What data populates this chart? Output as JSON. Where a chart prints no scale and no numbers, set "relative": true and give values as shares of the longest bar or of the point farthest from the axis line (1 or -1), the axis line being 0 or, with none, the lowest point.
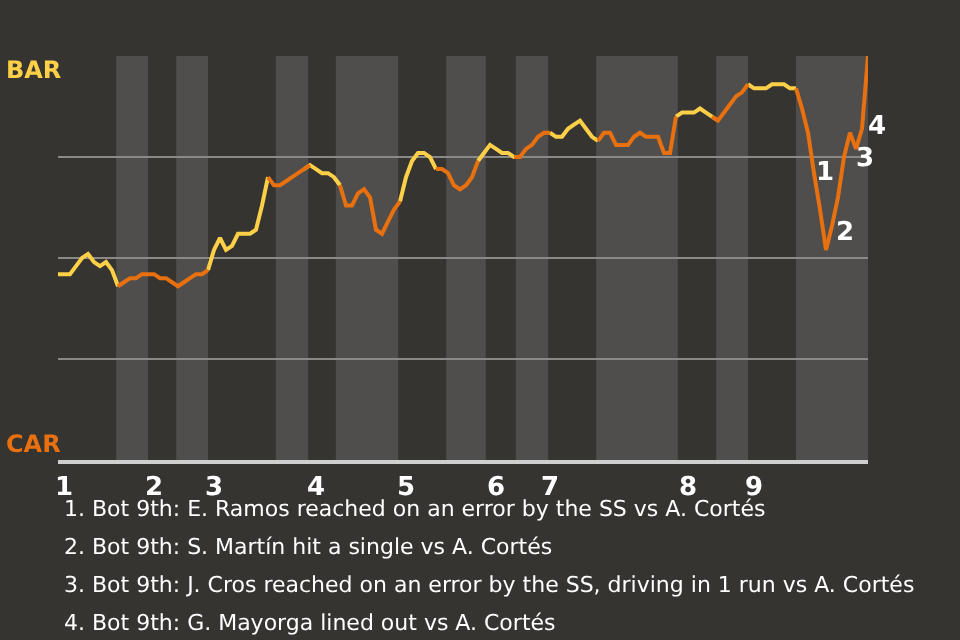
{
  "chart_data": {
    "type": "line",
    "relative": true,
    "categories": [
      null,
      "1",
      null,
      null,
      null,
      null,
      null,
      null,
      null,
      null,
      null,
      null,
      null,
      null,
      null,
      null,
      "2",
      null,
      null,
      null,
      null,
      null,
      null,
      null,
      null,
      null,
      "3",
      null,
      null,
      null,
      null,
      null,
      null,
      null,
      null,
      null,
      null,
      null,
      null,
      null,
      null,
      null,
      null,
      "4",
      null,
      null,
      null,
      null,
      null,
      null,
      null,
      null,
      null,
      null,
      null,
      null,
      null,
      null,
      "5",
      null,
      null,
      null,
      null,
      null,
      null,
      null,
      null,
      null,
      null,
      null,
      null,
      null,
      null,
      "6",
      null,
      null,
      null,
      null,
      null,
      null,
      null,
      null,
      "7",
      null,
      null,
      null,
      null,
      null,
      null,
      null,
      null,
      null,
      null,
      null,
      null,
      null,
      null,
      null,
      null,
      null,
      null,
      null,
      null,
      null,
      null,
      "8",
      null,
      null,
      null,
      null,
      null,
      null,
      null,
      null,
      null,
      null,
      "9",
      null,
      null,
      null,
      null,
      null,
      null,
      null,
      null,
      null,
      null,
      null,
      null,
      null,
      null,
      null,
      null,
      null,
      null,
      null
    ],
    "series": [
      {
        "color": "#fdd047",
        "values": [
          0.46,
          0.46,
          0.46,
          0.48,
          0.5,
          0.51,
          0.49,
          0.48,
          0.49,
          0.47,
          0.43,
          null,
          null,
          null,
          null,
          null,
          null,
          null,
          null,
          null,
          null,
          null,
          null,
          null,
          null,
          0.47,
          0.52,
          0.55,
          0.52,
          0.53,
          0.56,
          0.56,
          0.56,
          0.57,
          0.63,
          0.7,
          null,
          null,
          null,
          null,
          null,
          0.72,
          0.73,
          0.72,
          0.71,
          0.71,
          0.7,
          0.68,
          null,
          null,
          null,
          null,
          null,
          null,
          null,
          null,
          null,
          0.64,
          0.7,
          0.74,
          0.76,
          0.76,
          0.75,
          0.72,
          null,
          null,
          null,
          null,
          null,
          null,
          0.74,
          0.76,
          0.78,
          0.77,
          0.76,
          0.76,
          0.75,
          0.75,
          null,
          null,
          null,
          null,
          0.81,
          0.8,
          0.8,
          0.82,
          0.83,
          0.84,
          0.82,
          0.8,
          0.79,
          null,
          null,
          null,
          null,
          null,
          null,
          null,
          null,
          null,
          null,
          null,
          null,
          0.85,
          0.86,
          0.86,
          0.86,
          0.87,
          0.86,
          0.85,
          0.84,
          null,
          null,
          null,
          null,
          0.93,
          0.92,
          0.92,
          0.92,
          0.93,
          0.93,
          0.93,
          0.92,
          0.92,
          null,
          null,
          null,
          null,
          null,
          null,
          null,
          null,
          null,
          null,
          null,
          null
        ]
      },
      {
        "color": "#e8700e",
        "values": [
          null,
          null,
          null,
          null,
          null,
          null,
          null,
          null,
          null,
          null,
          0.43,
          0.44,
          0.45,
          0.45,
          0.46,
          0.46,
          0.46,
          0.45,
          0.45,
          0.44,
          0.43,
          0.44,
          0.45,
          0.46,
          0.46,
          0.47,
          null,
          null,
          null,
          null,
          null,
          null,
          null,
          null,
          null,
          0.7,
          0.68,
          0.68,
          0.69,
          0.7,
          0.71,
          0.72,
          0.73,
          null,
          null,
          null,
          null,
          0.68,
          0.63,
          0.63,
          0.66,
          0.67,
          0.65,
          0.57,
          0.56,
          0.59,
          0.62,
          0.64,
          null,
          null,
          null,
          null,
          null,
          0.72,
          0.72,
          0.71,
          0.68,
          0.67,
          0.68,
          0.7,
          0.74,
          null,
          null,
          null,
          null,
          null,
          0.75,
          0.75,
          0.77,
          0.78,
          0.8,
          0.81,
          0.81,
          null,
          null,
          null,
          null,
          null,
          null,
          null,
          0.79,
          0.81,
          0.81,
          0.78,
          0.78,
          0.78,
          0.8,
          0.81,
          0.8,
          0.8,
          0.8,
          0.76,
          0.76,
          0.85,
          null,
          null,
          null,
          null,
          null,
          0.85,
          0.84,
          0.86,
          0.88,
          0.9,
          0.91,
          0.93,
          null,
          null,
          null,
          null,
          null,
          null,
          null,
          0.92,
          0.87,
          0.81,
          0.71,
          0.62,
          0.52,
          0.58,
          0.65,
          0.75,
          0.81,
          0.77,
          0.82,
          1
        ]
      }
    ],
    "grid": "y",
    "marker": "none",
    "line_style": "solid",
    "annotations": [
      "BAR",
      "CAR",
      "1",
      "2",
      "3",
      "4",
      "1. Bot 9th: E. Ramos reached on an error by the SS vs A. Cortés",
      "2. Bot 9th: S. Martín hit a single vs A. Cortés",
      "3. Bot 9th: J. Cros reached on an error by the SS, driving in 1 run vs A. Cortés",
      "4. Bot 9th: G. Mayorga lined out vs A. Cortés"
    ]
  }
}
